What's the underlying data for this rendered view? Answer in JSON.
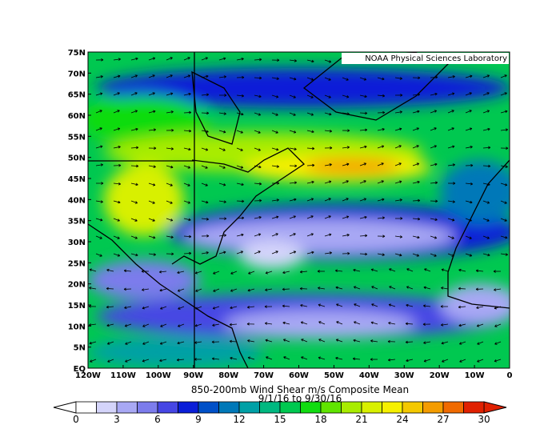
{
  "map": {
    "credit": "NOAA Physical Sciences Laboratory",
    "title": "850-200mb Wind Shear m/s Composite Mean",
    "subtitle": "9/1/16  to 9/30/16",
    "lat_labels": [
      "75N",
      "70N",
      "65N",
      "60N",
      "55N",
      "50N",
      "45N",
      "40N",
      "35N",
      "30N",
      "25N",
      "20N",
      "15N",
      "10N",
      "5N",
      "EQ"
    ],
    "lon_labels": [
      "120W",
      "110W",
      "100W",
      "90W",
      "80W",
      "70W",
      "60W",
      "50W",
      "40W",
      "30W",
      "20W",
      "10W",
      "0"
    ]
  },
  "colorbar": {
    "ticks": [
      0,
      3,
      6,
      9,
      12,
      15,
      18,
      21,
      24,
      27,
      30
    ],
    "colors": [
      "#ffffff",
      "#d4d4fa",
      "#a8a8f4",
      "#7c7cec",
      "#4646e4",
      "#0a1ed8",
      "#0050c8",
      "#0078b8",
      "#00a0a6",
      "#00b880",
      "#00c850",
      "#10dc10",
      "#60e400",
      "#a8ec00",
      "#d8f000",
      "#f6f000",
      "#f4c800",
      "#f49c00",
      "#f06a00",
      "#e02000"
    ]
  }
}
